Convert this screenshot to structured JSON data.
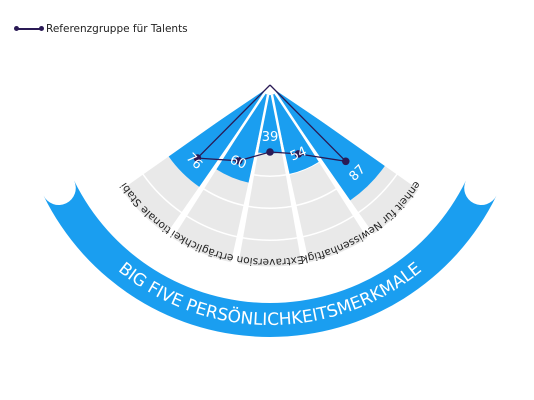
{
  "chart_data": {
    "type": "radial-bar",
    "title": "Big Five Persönlichkeitsmerkmale",
    "categories": [
      "Emotionale Stabilität",
      "Verträglichkeit",
      "Extraversion",
      "Gewissenhaftigkeit",
      "Offenheit für Neues"
    ],
    "values": [
      76,
      60,
      39,
      54,
      87
    ],
    "ylim": [
      0,
      100
    ],
    "series": [
      {
        "name": "Referenzgruppe für Talents",
        "values": [
          62,
          48,
          38,
          43,
          65
        ]
      }
    ],
    "legend": "top-left",
    "colors": {
      "bar": "#1a9ef0",
      "band": "#e9e9e9",
      "reference": "#2a1a55",
      "title_band": "#1a9ef0"
    }
  }
}
